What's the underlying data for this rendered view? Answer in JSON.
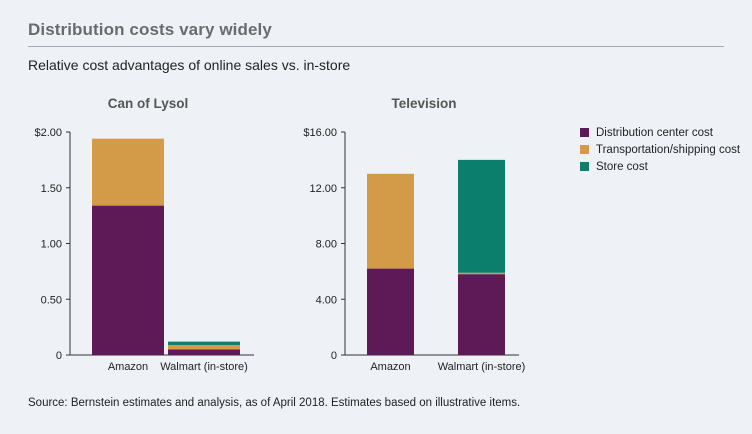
{
  "title": "Distribution costs vary widely",
  "subtitle": "Relative cost advantages of online sales vs. in-store",
  "source": "Source: Bernstein estimates and analysis, as of April 2018. Estimates based on illustrative items.",
  "colors": {
    "distribution": "#5e1a56",
    "transport": "#d39a48",
    "store": "#0b7f6b"
  },
  "legend": [
    {
      "label": "Distribution center cost",
      "color": "#5e1a56"
    },
    {
      "label": "Transportation/shipping cost",
      "color": "#d39a48"
    },
    {
      "label": "Store cost",
      "color": "#0b7f6b"
    }
  ],
  "chart_data": [
    {
      "type": "bar",
      "stacked": true,
      "title": "Can of Lysol",
      "categories": [
        "Amazon",
        "Walmart (in-store)"
      ],
      "series": [
        {
          "name": "Distribution center cost",
          "values": [
            1.34,
            0.05
          ]
        },
        {
          "name": "Transportation/shipping cost",
          "values": [
            0.6,
            0.04
          ]
        },
        {
          "name": "Store cost",
          "values": [
            0,
            0.03
          ]
        }
      ],
      "ylim": [
        0,
        2.0
      ],
      "yticks": [
        0,
        0.5,
        1.0,
        1.5,
        2.0
      ],
      "ytick_labels": [
        "0",
        "0.50",
        "1.00",
        "1.50",
        "$2.00"
      ],
      "grid": false
    },
    {
      "type": "bar",
      "stacked": true,
      "title": "Television",
      "categories": [
        "Amazon",
        "Walmart (in-store)"
      ],
      "series": [
        {
          "name": "Distribution center cost",
          "values": [
            6.2,
            5.8
          ]
        },
        {
          "name": "Transportation/shipping cost",
          "values": [
            6.8,
            0.1
          ]
        },
        {
          "name": "Store cost",
          "values": [
            0,
            8.1
          ]
        }
      ],
      "ylim": [
        0,
        16
      ],
      "yticks": [
        0,
        4,
        8,
        12,
        16
      ],
      "ytick_labels": [
        "0",
        "4.00",
        "8.00",
        "12.00",
        "$16.00"
      ],
      "grid": false
    }
  ]
}
